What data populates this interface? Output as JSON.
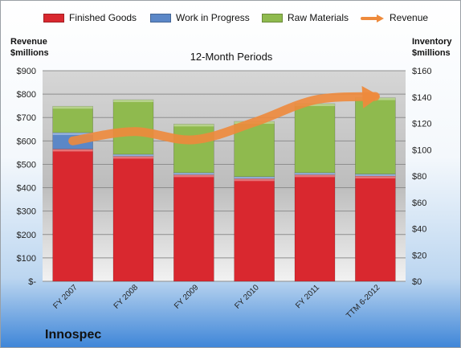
{
  "chart_data": {
    "type": "bar",
    "title": "12-Month Periods",
    "categories": [
      "FY 2007",
      "FY 2008",
      "FY 2009",
      "FY 2010",
      "FY 2011",
      "TTM 6-2012"
    ],
    "series": [
      {
        "name": "Finished Goods",
        "axis": "right",
        "color": "#d9282f",
        "values": [
          100.5,
          95,
          81,
          78,
          81,
          80
        ]
      },
      {
        "name": "Work in Progress",
        "axis": "right",
        "color": "#5b87c7",
        "values": [
          12.5,
          1.5,
          1.5,
          1.5,
          1.5,
          1.5
        ]
      },
      {
        "name": "Raw Materials",
        "axis": "right",
        "color": "#8fba4e",
        "values": [
          20,
          41.5,
          37,
          42,
          52.5,
          58
        ]
      },
      {
        "name": "Revenue",
        "type": "line",
        "axis": "left",
        "color": "#ee8a3c",
        "values": [
          600,
          640,
          605,
          680,
          775,
          790
        ]
      }
    ],
    "y_left": {
      "label": [
        "Revenue",
        "$millions"
      ],
      "range": [
        0,
        900
      ],
      "ticks": [
        "$-",
        "$100",
        "$200",
        "$300",
        "$400",
        "$500",
        "$600",
        "$700",
        "$800",
        "$900"
      ]
    },
    "y_right": {
      "label": [
        "Inventory",
        "$millions"
      ],
      "range": [
        0,
        160
      ],
      "ticks": [
        "$0",
        "$20",
        "$40",
        "$60",
        "$80",
        "$100",
        "$120",
        "$140",
        "$160"
      ]
    },
    "legend_position": "top",
    "grid": true
  },
  "company": "Innospec"
}
